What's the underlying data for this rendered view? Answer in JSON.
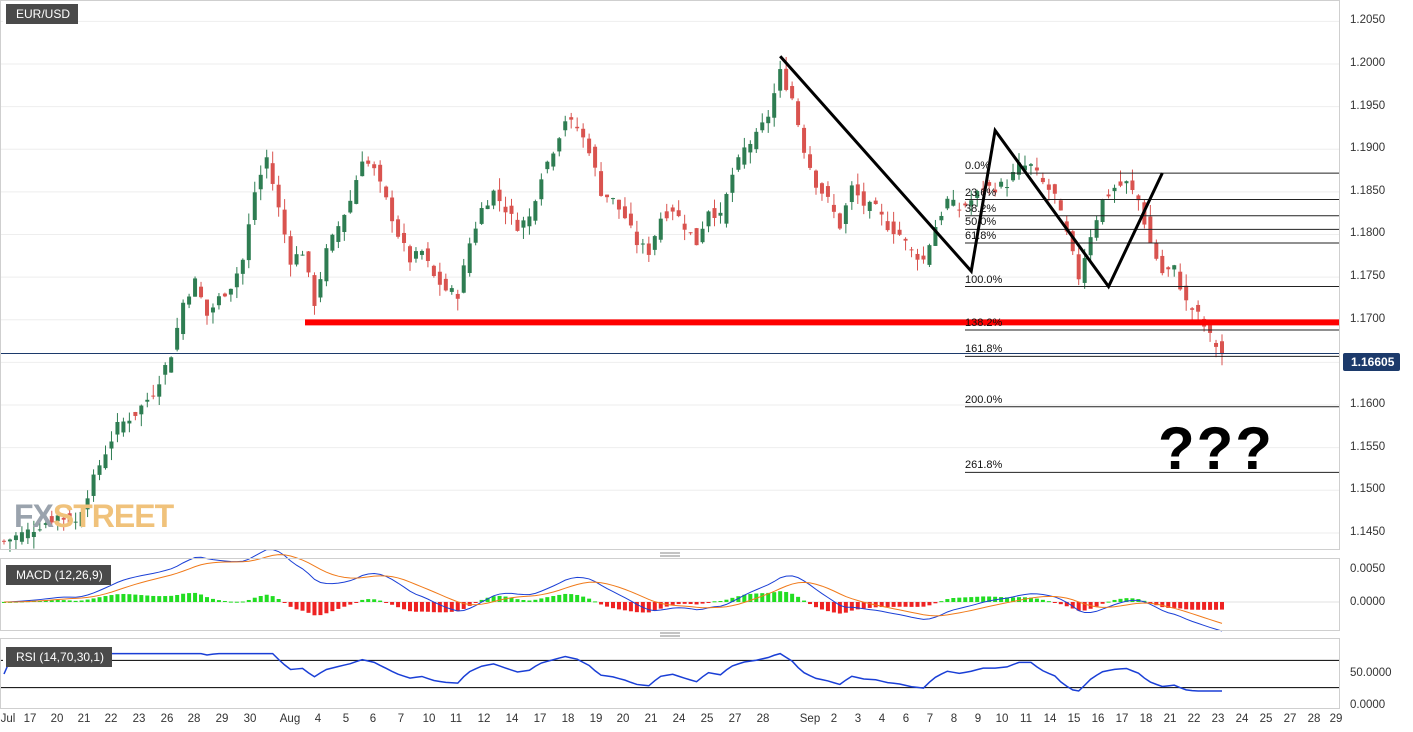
{
  "header": {
    "symbol": "EUR/USD"
  },
  "indicators": {
    "macd_label": "MACD (12,26,9)",
    "rsi_label": "RSI (14,70,30,1)"
  },
  "price_axis": [
    "1.2050",
    "1.2000",
    "1.1950",
    "1.1900",
    "1.1850",
    "1.1800",
    "1.1750",
    "1.1700",
    "1.1650",
    "1.1600",
    "1.1550",
    "1.1500",
    "1.1450"
  ],
  "macd_axis": [
    "0.0050",
    "0.0000"
  ],
  "rsi_axis": [
    "50.0000",
    "0.0000"
  ],
  "last_price": "1.16605",
  "annotation": "???",
  "watermark": {
    "fx": "FX",
    "street": "STREET"
  },
  "fib_levels": [
    {
      "label": "0.0%",
      "price": 1.1872
    },
    {
      "label": "23.6%",
      "price": 1.1841
    },
    {
      "label": "38.2%",
      "price": 1.1822
    },
    {
      "label": "50.0%",
      "price": 1.1806
    },
    {
      "label": "61.8%",
      "price": 1.179
    },
    {
      "label": "100.0%",
      "price": 1.1739
    },
    {
      "label": "138.2%",
      "price": 1.1688
    },
    {
      "label": "161.8%",
      "price": 1.1657
    },
    {
      "label": "200.0%",
      "price": 1.1598
    },
    {
      "label": "261.8%",
      "price": 1.1521
    }
  ],
  "x_axis": [
    "Jul",
    "17",
    "20",
    "21",
    "22",
    "23",
    "26",
    "28",
    "29",
    "30",
    "Aug",
    "4",
    "5",
    "6",
    "7",
    "10",
    "11",
    "12",
    "14",
    "17",
    "18",
    "19",
    "20",
    "21",
    "24",
    "25",
    "27",
    "28",
    "Sep",
    "2",
    "3",
    "4",
    "6",
    "7",
    "8",
    "9",
    "10",
    "11",
    "14",
    "15",
    "16",
    "17",
    "18",
    "21",
    "22",
    "23",
    "24",
    "25",
    "27",
    "28",
    "29"
  ],
  "chart_data": {
    "type": "candlestick",
    "symbol": "EUR/USD",
    "ylim": [
      1.143,
      1.2075
    ],
    "support_level": 1.1697,
    "last_price": 1.16605,
    "close_path": [
      [
        0,
        1.144
      ],
      [
        5,
        1.1455
      ],
      [
        9,
        1.147
      ],
      [
        12,
        1.1462
      ],
      [
        16,
        1.153
      ],
      [
        19,
        1.1575
      ],
      [
        22,
        1.159
      ],
      [
        25,
        1.1615
      ],
      [
        28,
        1.166
      ],
      [
        30,
        1.172
      ],
      [
        32,
        1.1745
      ],
      [
        34,
        1.1705
      ],
      [
        36,
        1.1725
      ],
      [
        38,
        1.174
      ],
      [
        40,
        1.177
      ],
      [
        42,
        1.185
      ],
      [
        44,
        1.189
      ],
      [
        46,
        1.183
      ],
      [
        48,
        1.177
      ],
      [
        50,
        1.178
      ],
      [
        52,
        1.172
      ],
      [
        54,
        1.178
      ],
      [
        56,
        1.181
      ],
      [
        58,
        1.184
      ],
      [
        60,
        1.189
      ],
      [
        62,
        1.1875
      ],
      [
        64,
        1.184
      ],
      [
        66,
        1.18
      ],
      [
        68,
        1.177
      ],
      [
        70,
        1.178
      ],
      [
        72,
        1.175
      ],
      [
        74,
        1.1735
      ],
      [
        76,
        1.173
      ],
      [
        78,
        1.179
      ],
      [
        80,
        1.183
      ],
      [
        82,
        1.185
      ],
      [
        84,
        1.183
      ],
      [
        86,
        1.181
      ],
      [
        88,
        1.182
      ],
      [
        90,
        1.187
      ],
      [
        92,
        1.19
      ],
      [
        94,
        1.1935
      ],
      [
        96,
        1.1925
      ],
      [
        98,
        1.19
      ],
      [
        100,
        1.185
      ],
      [
        102,
        1.184
      ],
      [
        104,
        1.182
      ],
      [
        106,
        1.179
      ],
      [
        108,
        1.178
      ],
      [
        110,
        1.182
      ],
      [
        112,
        1.183
      ],
      [
        114,
        1.181
      ],
      [
        116,
        1.179
      ],
      [
        118,
        1.183
      ],
      [
        120,
        1.182
      ],
      [
        122,
        1.187
      ],
      [
        124,
        1.19
      ],
      [
        126,
        1.1915
      ],
      [
        128,
        1.194
      ],
      [
        130,
        1.199
      ],
      [
        132,
        1.196
      ],
      [
        134,
        1.19
      ],
      [
        136,
        1.186
      ],
      [
        138,
        1.184
      ],
      [
        140,
        1.181
      ],
      [
        142,
        1.1855
      ],
      [
        144,
        1.1835
      ],
      [
        146,
        1.183
      ],
      [
        148,
        1.181
      ],
      [
        150,
        1.18
      ],
      [
        152,
        1.178
      ],
      [
        154,
        1.177
      ],
      [
        156,
        1.181
      ],
      [
        158,
        1.184
      ],
      [
        160,
        1.183
      ],
      [
        162,
        1.184
      ],
      [
        164,
        1.1855
      ],
      [
        166,
        1.1855
      ],
      [
        168,
        1.186
      ],
      [
        170,
        1.188
      ],
      [
        172,
        1.188
      ],
      [
        174,
        1.186
      ],
      [
        176,
        1.1845
      ],
      [
        178,
        1.18
      ],
      [
        180,
        1.175
      ],
      [
        182,
        1.18
      ],
      [
        184,
        1.184
      ],
      [
        186,
        1.1855
      ],
      [
        188,
        1.186
      ],
      [
        190,
        1.184
      ],
      [
        192,
        1.179
      ],
      [
        194,
        1.1755
      ],
      [
        196,
        1.176
      ],
      [
        198,
        1.172
      ],
      [
        200,
        1.1705
      ],
      [
        202,
        1.168
      ],
      [
        204,
        1.166
      ]
    ],
    "macd_ylim": [
      -0.004,
      0.006
    ],
    "rsi_ylim": [
      0,
      100
    ],
    "rsi_levels": [
      70,
      30
    ]
  }
}
